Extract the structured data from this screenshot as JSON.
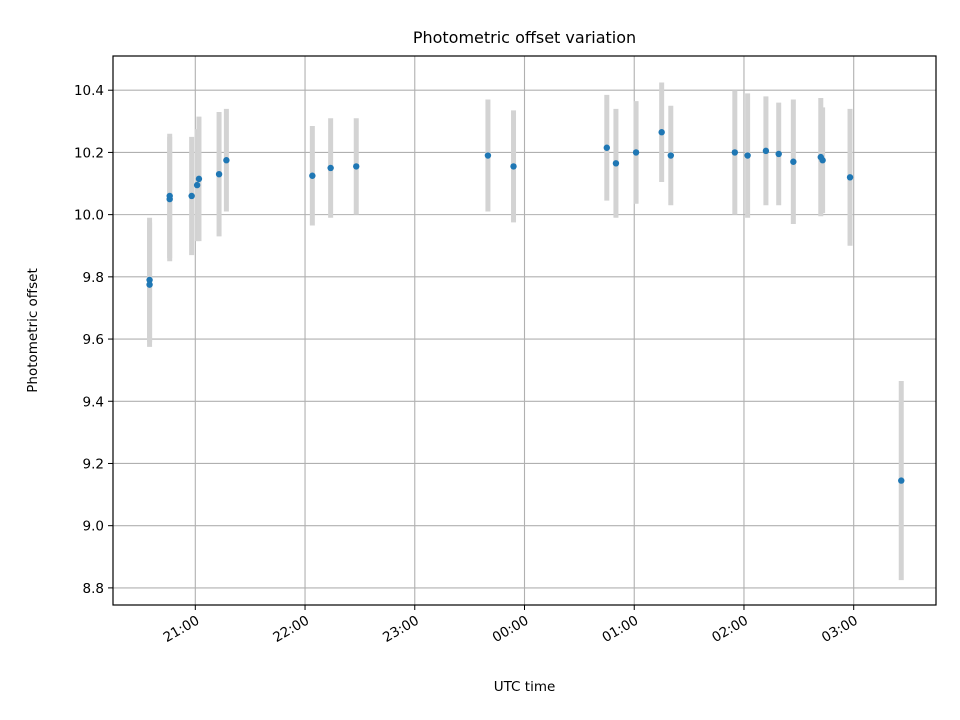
{
  "chart_data": {
    "type": "scatter",
    "title": "Photometric offset variation",
    "xlabel": "UTC time",
    "ylabel": "Photometric offset",
    "ylim": [
      8.745,
      10.51
    ],
    "xlim": [
      "20:15",
      "03:45"
    ],
    "x_ticks": [
      "21:00",
      "22:00",
      "23:00",
      "00:00",
      "01:00",
      "02:00",
      "03:00"
    ],
    "y_ticks": [
      "8.8",
      "9.0",
      "9.2",
      "9.4",
      "9.6",
      "9.8",
      "10.0",
      "10.2",
      "10.4"
    ],
    "grid": true,
    "colors": {
      "point": "#1f77b4",
      "errorbar": "#d3d3d3",
      "grid": "#b0b0b0"
    },
    "points": [
      {
        "x": "20:35",
        "y": 9.79,
        "yerr": 0.2
      },
      {
        "x": "20:35",
        "y": 9.775,
        "yerr": 0.2
      },
      {
        "x": "20:46",
        "y": 10.05,
        "yerr": 0.2
      },
      {
        "x": "20:46",
        "y": 10.06,
        "yerr": 0.2
      },
      {
        "x": "20:58",
        "y": 10.06,
        "yerr": 0.19
      },
      {
        "x": "21:01",
        "y": 10.095,
        "yerr": 0.18
      },
      {
        "x": "21:02",
        "y": 10.115,
        "yerr": 0.2
      },
      {
        "x": "21:13",
        "y": 10.13,
        "yerr": 0.2
      },
      {
        "x": "21:17",
        "y": 10.175,
        "yerr": 0.165
      },
      {
        "x": "22:04",
        "y": 10.125,
        "yerr": 0.16
      },
      {
        "x": "22:14",
        "y": 10.15,
        "yerr": 0.16
      },
      {
        "x": "22:28",
        "y": 10.155,
        "yerr": 0.155
      },
      {
        "x": "23:40",
        "y": 10.19,
        "yerr": 0.18
      },
      {
        "x": "23:54",
        "y": 10.155,
        "yerr": 0.18
      },
      {
        "x": "00:45",
        "y": 10.215,
        "yerr": 0.17
      },
      {
        "x": "00:50",
        "y": 10.165,
        "yerr": 0.175
      },
      {
        "x": "01:01",
        "y": 10.2,
        "yerr": 0.165
      },
      {
        "x": "01:15",
        "y": 10.265,
        "yerr": 0.16
      },
      {
        "x": "01:20",
        "y": 10.19,
        "yerr": 0.16
      },
      {
        "x": "01:55",
        "y": 10.2,
        "yerr": 0.2
      },
      {
        "x": "02:02",
        "y": 10.19,
        "yerr": 0.2
      },
      {
        "x": "02:12",
        "y": 10.205,
        "yerr": 0.175
      },
      {
        "x": "02:19",
        "y": 10.195,
        "yerr": 0.165
      },
      {
        "x": "02:27",
        "y": 10.17,
        "yerr": 0.2
      },
      {
        "x": "02:42",
        "y": 10.185,
        "yerr": 0.19
      },
      {
        "x": "02:43",
        "y": 10.175,
        "yerr": 0.17
      },
      {
        "x": "02:58",
        "y": 10.12,
        "yerr": 0.22
      },
      {
        "x": "03:26",
        "y": 9.145,
        "yerr": 0.32
      }
    ]
  }
}
